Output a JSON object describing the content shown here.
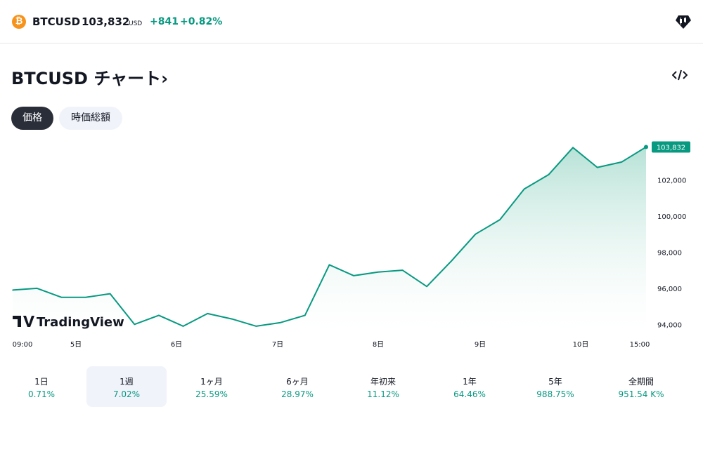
{
  "header": {
    "coin_icon_glyph": "₿",
    "symbol": "BTCUSD",
    "price": "103,832",
    "currency": "USD",
    "change_abs": "+841",
    "change_pct": "+0.82%",
    "brand_icon": "tradingview-brand-icon"
  },
  "title": "BTCUSD チャート›",
  "tabs": [
    {
      "label": "価格",
      "selected": true
    },
    {
      "label": "時価総額",
      "selected": false
    }
  ],
  "chart_data": {
    "type": "area",
    "title": "",
    "xlabel": "",
    "ylabel": "",
    "x_tick_labels": [
      "09:00",
      "5日",
      "6日",
      "7日",
      "8日",
      "9日",
      "10日",
      "15:00"
    ],
    "y_tick_labels": [
      "94,000",
      "96,000",
      "98,000",
      "100,000",
      "102,000"
    ],
    "ylim": [
      93700,
      104200
    ],
    "last_price_label": "103,832",
    "watermark": "TradingView",
    "grid": false,
    "series": [
      {
        "x": [
          "4日 09:00",
          "4日 12:00",
          "4日 18:00",
          "5日 00:00",
          "5日 06:00",
          "5日 12:00",
          "5日 18:00",
          "6日 00:00",
          "6日 06:00",
          "6日 12:00",
          "6日 18:00",
          "7日 00:00",
          "7日 06:00",
          "7日 12:00",
          "7日 18:00",
          "8日 00:00",
          "8日 06:00",
          "8日 12:00",
          "8日 18:00",
          "9日 00:00",
          "9日 06:00",
          "9日 12:00",
          "9日 18:00",
          "10日 00:00",
          "10日 06:00",
          "10日 12:00",
          "10日 15:00"
        ],
        "y": [
          95900,
          96000,
          95500,
          95500,
          95700,
          94000,
          94500,
          93900,
          94600,
          94300,
          93900,
          94100,
          94500,
          97300,
          96700,
          96900,
          97000,
          96100,
          97500,
          99000,
          99800,
          101500,
          102300,
          103800,
          102700,
          103000,
          103832
        ]
      }
    ]
  },
  "periods": [
    {
      "label": "1日",
      "value": "0.71%",
      "selected": false
    },
    {
      "label": "1週",
      "value": "7.02%",
      "selected": true
    },
    {
      "label": "1ヶ月",
      "value": "25.59%",
      "selected": false
    },
    {
      "label": "6ヶ月",
      "value": "28.97%",
      "selected": false
    },
    {
      "label": "年初来",
      "value": "11.12%",
      "selected": false
    },
    {
      "label": "1年",
      "value": "64.46%",
      "selected": false
    },
    {
      "label": "5年",
      "value": "988.75%",
      "selected": false
    },
    {
      "label": "全期間",
      "value": "951.54 K%",
      "selected": false
    }
  ],
  "colors": {
    "line": "#089981",
    "area_top": "#9fd8c9",
    "area_bottom": "#ffffff",
    "badge": "#089981"
  }
}
